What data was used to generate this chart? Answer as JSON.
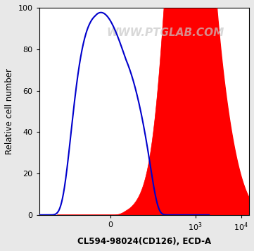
{
  "xlabel": "CL594-98024(CD126), ECD-A",
  "ylabel": "Relative cell number",
  "watermark": "WWW.PTGLAB.COM",
  "ylim": [
    0,
    100
  ],
  "background_color": "#e8e8e8",
  "plot_bg_color": "#ffffff",
  "blue_color": "#0000cc",
  "red_fill_color": "#ff0000",
  "tick_label_fontsize": 8,
  "axis_label_fontsize": 8.5,
  "watermark_color": "#c8c8c8",
  "watermark_fontsize": 11,
  "linthresh": 30,
  "linscale": 0.3
}
